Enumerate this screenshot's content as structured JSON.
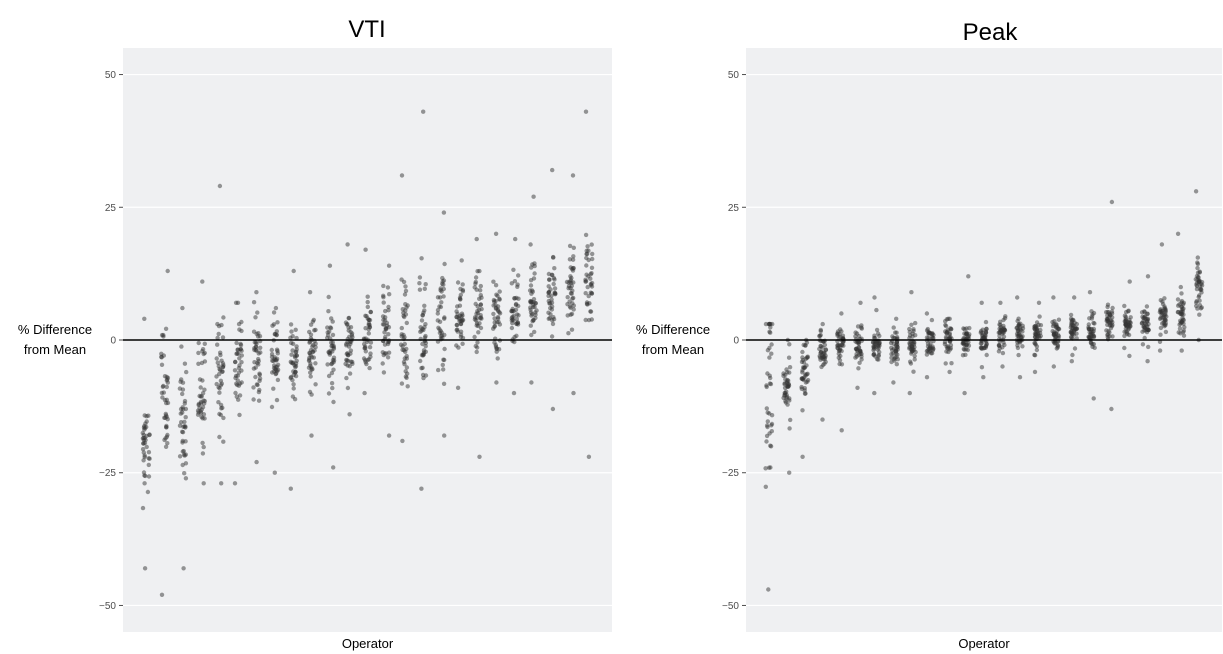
{
  "chart_data": [
    {
      "type": "scatter",
      "title": "VTI",
      "xlabel": "Operator",
      "ylabel": [
        "% Difference",
        "from Mean"
      ],
      "ylim": [
        -55,
        55
      ],
      "yticks": [
        50,
        25,
        0,
        -25,
        -50
      ],
      "ytick_labels": [
        "50",
        "25",
        "0",
        "−25",
        "−50"
      ],
      "grid": true,
      "reference_line": 0,
      "point_color": "#333333",
      "series": [
        {
          "operator": 1,
          "median": -20,
          "spread": 9,
          "min": -43,
          "max": 4
        },
        {
          "operator": 2,
          "median": -12,
          "spread": 13,
          "min": -48,
          "max": 13
        },
        {
          "operator": 3,
          "median": -16,
          "spread": 10,
          "min": -43,
          "max": 6
        },
        {
          "operator": 4,
          "median": -10,
          "spread": 9,
          "min": -27,
          "max": 11
        },
        {
          "operator": 5,
          "median": -8,
          "spread": 10,
          "min": -27,
          "max": 29
        },
        {
          "operator": 6,
          "median": -5,
          "spread": 8,
          "min": -27,
          "max": 7
        },
        {
          "operator": 7,
          "median": -4,
          "spread": 7,
          "min": -23,
          "max": 9
        },
        {
          "operator": 8,
          "median": -4,
          "spread": 7,
          "min": -25,
          "max": 6
        },
        {
          "operator": 9,
          "median": -3,
          "spread": 8,
          "min": -28,
          "max": 13
        },
        {
          "operator": 10,
          "median": -2,
          "spread": 7,
          "min": -18,
          "max": 9
        },
        {
          "operator": 11,
          "median": -1,
          "spread": 7,
          "min": -24,
          "max": 14
        },
        {
          "operator": 12,
          "median": 0,
          "spread": 7,
          "min": -14,
          "max": 18
        },
        {
          "operator": 13,
          "median": 1,
          "spread": 6,
          "min": -10,
          "max": 17
        },
        {
          "operator": 14,
          "median": 3,
          "spread": 7,
          "min": -18,
          "max": 14
        },
        {
          "operator": 15,
          "median": 2,
          "spread": 9,
          "min": -19,
          "max": 31
        },
        {
          "operator": 16,
          "median": 3,
          "spread": 9,
          "min": -28,
          "max": 43
        },
        {
          "operator": 17,
          "median": 3,
          "spread": 9,
          "min": -18,
          "max": 24
        },
        {
          "operator": 18,
          "median": 4,
          "spread": 6,
          "min": -9,
          "max": 15
        },
        {
          "operator": 19,
          "median": 5,
          "spread": 6,
          "min": -22,
          "max": 19
        },
        {
          "operator": 20,
          "median": 5,
          "spread": 6,
          "min": -8,
          "max": 20
        },
        {
          "operator": 21,
          "median": 6,
          "spread": 6,
          "min": -10,
          "max": 19
        },
        {
          "operator": 22,
          "median": 7,
          "spread": 6,
          "min": -8,
          "max": 27
        },
        {
          "operator": 23,
          "median": 8,
          "spread": 6,
          "min": -13,
          "max": 32
        },
        {
          "operator": 24,
          "median": 10,
          "spread": 6,
          "min": -10,
          "max": 31
        },
        {
          "operator": 25,
          "median": 11,
          "spread": 8,
          "min": -22,
          "max": 43
        }
      ]
    },
    {
      "type": "scatter",
      "title": "Peak",
      "xlabel": "Operator",
      "ylabel": [
        "% Difference",
        "from Mean"
      ],
      "ylim": [
        -55,
        55
      ],
      "yticks": [
        50,
        25,
        0,
        -25,
        -50
      ],
      "ytick_labels": [
        "50",
        "25",
        "0",
        "−25",
        "−50"
      ],
      "grid": true,
      "reference_line": 0,
      "point_color": "#333333",
      "series": [
        {
          "operator": 1,
          "median": -10,
          "spread": 14,
          "min": -47,
          "max": 3
        },
        {
          "operator": 2,
          "median": -9,
          "spread": 5,
          "min": -25,
          "max": 0
        },
        {
          "operator": 3,
          "median": -6,
          "spread": 5,
          "min": -22,
          "max": 0
        },
        {
          "operator": 4,
          "median": -2,
          "spread": 3,
          "min": -15,
          "max": 3
        },
        {
          "operator": 5,
          "median": -1,
          "spread": 3,
          "min": -17,
          "max": 5
        },
        {
          "operator": 6,
          "median": -1,
          "spread": 3,
          "min": -9,
          "max": 7
        },
        {
          "operator": 7,
          "median": -1,
          "spread": 3,
          "min": -10,
          "max": 8
        },
        {
          "operator": 8,
          "median": -1,
          "spread": 3,
          "min": -8,
          "max": 4
        },
        {
          "operator": 9,
          "median": -1,
          "spread": 3,
          "min": -10,
          "max": 9
        },
        {
          "operator": 10,
          "median": 0,
          "spread": 3,
          "min": -7,
          "max": 5
        },
        {
          "operator": 11,
          "median": 0,
          "spread": 3,
          "min": -6,
          "max": 4
        },
        {
          "operator": 12,
          "median": 0,
          "spread": 3,
          "min": -10,
          "max": 12
        },
        {
          "operator": 13,
          "median": 0,
          "spread": 3,
          "min": -7,
          "max": 7
        },
        {
          "operator": 14,
          "median": 1,
          "spread": 3,
          "min": -5,
          "max": 7
        },
        {
          "operator": 15,
          "median": 1,
          "spread": 3,
          "min": -7,
          "max": 8
        },
        {
          "operator": 16,
          "median": 1,
          "spread": 3,
          "min": -6,
          "max": 7
        },
        {
          "operator": 17,
          "median": 1,
          "spread": 3,
          "min": -5,
          "max": 8
        },
        {
          "operator": 18,
          "median": 2,
          "spread": 3,
          "min": -4,
          "max": 8
        },
        {
          "operator": 19,
          "median": 2,
          "spread": 3,
          "min": -11,
          "max": 9
        },
        {
          "operator": 20,
          "median": 3,
          "spread": 4,
          "min": -13,
          "max": 26
        },
        {
          "operator": 21,
          "median": 3,
          "spread": 3,
          "min": -3,
          "max": 11
        },
        {
          "operator": 22,
          "median": 3,
          "spread": 3,
          "min": -4,
          "max": 12
        },
        {
          "operator": 23,
          "median": 4,
          "spread": 3,
          "min": -2,
          "max": 18
        },
        {
          "operator": 24,
          "median": 5,
          "spread": 4,
          "min": -2,
          "max": 20
        },
        {
          "operator": 25,
          "median": 10,
          "spread": 5,
          "min": 0,
          "max": 28
        }
      ]
    }
  ]
}
